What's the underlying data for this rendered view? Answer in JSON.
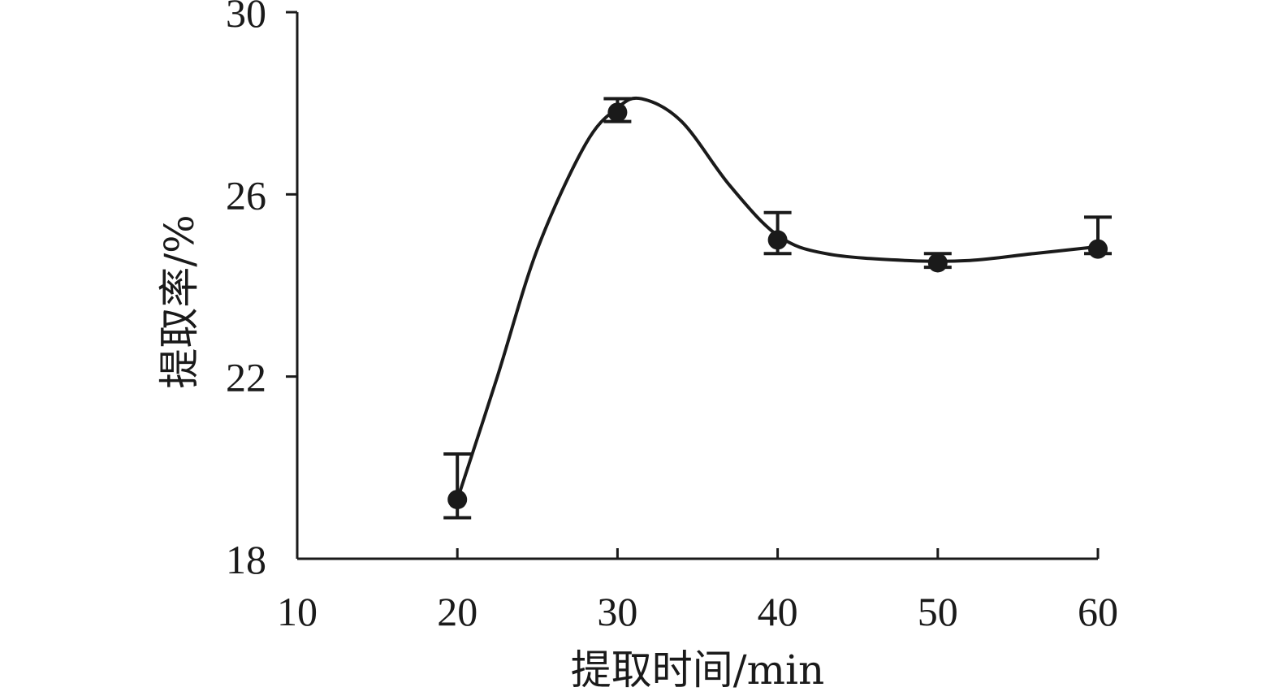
{
  "chart_data": {
    "type": "line",
    "xlabel": "提取时间/min",
    "ylabel": "提取率/%",
    "xlim": [
      10,
      60
    ],
    "ylim": [
      18,
      30
    ],
    "xticks": [
      10,
      20,
      30,
      40,
      50,
      60
    ],
    "yticks": [
      18,
      22,
      26,
      30
    ],
    "grid": false,
    "series": [
      {
        "x": [
          20,
          30,
          40,
          50,
          60
        ],
        "values": [
          19.3,
          27.8,
          25.0,
          24.5,
          24.8
        ],
        "error_upper": [
          1.0,
          0.3,
          0.6,
          0.2,
          0.7
        ],
        "error_lower": [
          0.4,
          0.2,
          0.3,
          0.1,
          0.1
        ]
      }
    ],
    "smooth_curve": {
      "x": [
        20,
        22.5,
        25,
        28,
        30,
        31.5,
        34,
        37,
        40,
        43,
        48,
        52,
        56,
        60
      ],
      "y": [
        19.3,
        22.0,
        24.8,
        27.1,
        27.9,
        28.1,
        27.6,
        26.2,
        25.1,
        24.7,
        24.55,
        24.55,
        24.7,
        24.85
      ]
    }
  }
}
